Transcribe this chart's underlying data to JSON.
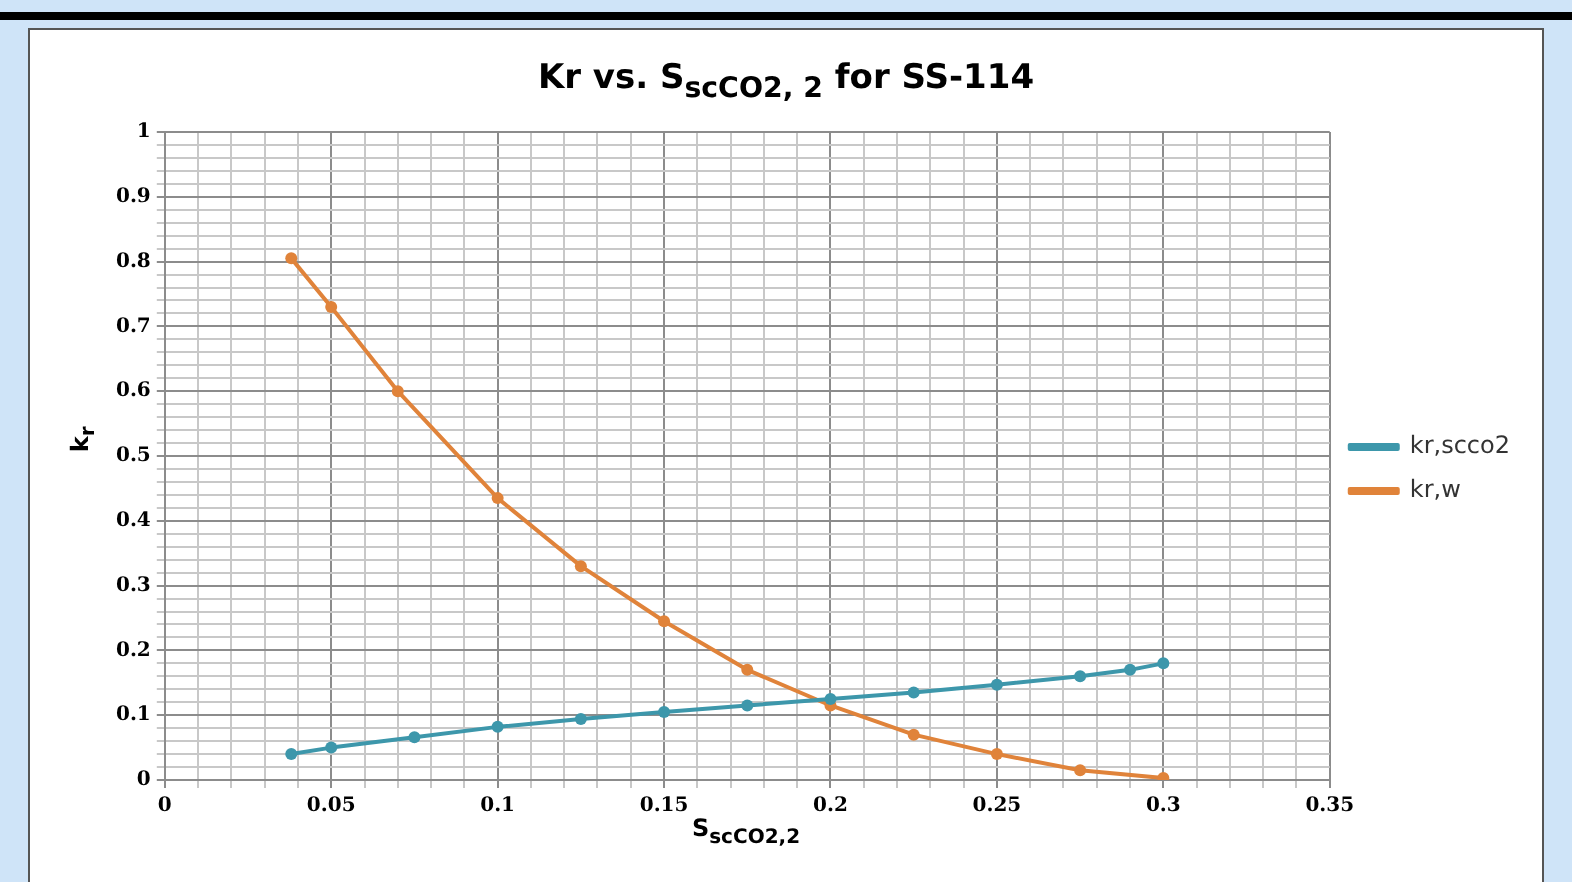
{
  "chart_data": {
    "type": "line",
    "title": "Kr vs. S$_{scCO2, 2}$ for SS-114",
    "xlabel": "S$_{scCO2,2}$",
    "ylabel": "k$_{r}$",
    "series": [
      {
        "name": "kr,scco2",
        "color": "#3d97ab",
        "x": [
          0.038,
          0.05,
          0.075,
          0.1,
          0.125,
          0.15,
          0.175,
          0.2,
          0.225,
          0.25,
          0.275,
          0.29,
          0.3
        ],
        "values": [
          0.04,
          0.05,
          0.066,
          0.082,
          0.094,
          0.105,
          0.115,
          0.125,
          0.135,
          0.147,
          0.16,
          0.17,
          0.18
        ]
      },
      {
        "name": "kr,w",
        "color": "#e0833a",
        "x": [
          0.038,
          0.05,
          0.07,
          0.1,
          0.125,
          0.15,
          0.175,
          0.2,
          0.225,
          0.25,
          0.275,
          0.3
        ],
        "values": [
          0.805,
          0.73,
          0.6,
          0.435,
          0.33,
          0.245,
          0.17,
          0.115,
          0.07,
          0.04,
          0.015,
          0.003
        ]
      }
    ],
    "xlim": [
      0,
      0.35
    ],
    "ylim": [
      0,
      1
    ],
    "xticks": [
      0,
      {
        "value": 0.01,
        "label": null
      },
      {
        "value": 0.02,
        "label": null
      },
      {
        "value": 0.03,
        "label": null
      },
      {
        "value": 0.04,
        "label": null
      },
      0.05,
      {
        "value": 0.06,
        "label": null
      },
      {
        "value": 0.07,
        "label": null
      },
      {
        "value": 0.08,
        "label": null
      },
      {
        "value": 0.09,
        "label": null
      },
      0.1,
      {
        "value": 0.11,
        "label": null
      },
      {
        "value": 0.12,
        "label": null
      },
      {
        "value": 0.13,
        "label": null
      },
      {
        "value": 0.14,
        "label": null
      },
      0.15,
      {
        "value": 0.16,
        "label": null
      },
      {
        "value": 0.17,
        "label": null
      },
      {
        "value": 0.18,
        "label": null
      },
      {
        "value": 0.19,
        "label": null
      },
      0.2,
      {
        "value": 0.21,
        "label": null
      },
      {
        "value": 0.22,
        "label": null
      },
      {
        "value": 0.23,
        "label": null
      },
      {
        "value": 0.24,
        "label": null
      },
      0.25,
      {
        "value": 0.26,
        "label": null
      },
      {
        "value": 0.27,
        "label": null
      },
      {
        "value": 0.28,
        "label": null
      },
      {
        "value": 0.29,
        "label": null
      },
      0.3,
      {
        "value": 0.31,
        "label": null
      },
      {
        "value": 0.32,
        "label": null
      },
      {
        "value": 0.33,
        "label": null
      },
      {
        "value": 0.34,
        "label": null
      },
      0.35
    ],
    "yticks": [
      0,
      {
        "value": 0.02,
        "label": null
      },
      {
        "value": 0.04,
        "label": null
      },
      {
        "value": 0.06,
        "label": null
      },
      {
        "value": 0.08,
        "label": null
      },
      0.1,
      {
        "value": 0.12,
        "label": null
      },
      {
        "value": 0.14,
        "label": null
      },
      {
        "value": 0.16,
        "label": null
      },
      {
        "value": 0.18,
        "label": null
      },
      0.2,
      {
        "value": 0.22,
        "label": null
      },
      {
        "value": 0.24,
        "label": null
      },
      {
        "value": 0.26,
        "label": null
      },
      {
        "value": 0.28,
        "label": null
      },
      0.3,
      {
        "value": 0.32,
        "label": null
      },
      {
        "value": 0.34,
        "label": null
      },
      {
        "value": 0.36,
        "label": null
      },
      {
        "value": 0.38,
        "label": null
      },
      0.4,
      {
        "value": 0.42,
        "label": null
      },
      {
        "value": 0.44,
        "label": null
      },
      {
        "value": 0.46,
        "label": null
      },
      {
        "value": 0.48,
        "label": null
      },
      0.5,
      {
        "value": 0.52,
        "label": null
      },
      {
        "value": 0.54,
        "label": null
      },
      {
        "value": 0.56,
        "label": null
      },
      {
        "value": 0.58,
        "label": null
      },
      0.6,
      {
        "value": 0.62,
        "label": null
      },
      {
        "value": 0.64,
        "label": null
      },
      {
        "value": 0.66,
        "label": null
      },
      {
        "value": 0.68,
        "label": null
      },
      0.7,
      {
        "value": 0.72,
        "label": null
      },
      {
        "value": 0.74,
        "label": null
      },
      {
        "value": 0.76,
        "label": null
      },
      {
        "value": 0.78,
        "label": null
      },
      0.8,
      {
        "value": 0.82,
        "label": null
      },
      {
        "value": 0.84,
        "label": null
      },
      {
        "value": 0.86,
        "label": null
      },
      {
        "value": 0.88,
        "label": null
      },
      0.9,
      {
        "value": 0.92,
        "label": null
      },
      {
        "value": 0.94,
        "label": null
      },
      {
        "value": 0.96,
        "label": null
      },
      {
        "value": 0.98,
        "label": null
      },
      1
    ],
    "grid": true,
    "legend": "right",
    "marker": "circle",
    "line_style": "solid"
  }
}
